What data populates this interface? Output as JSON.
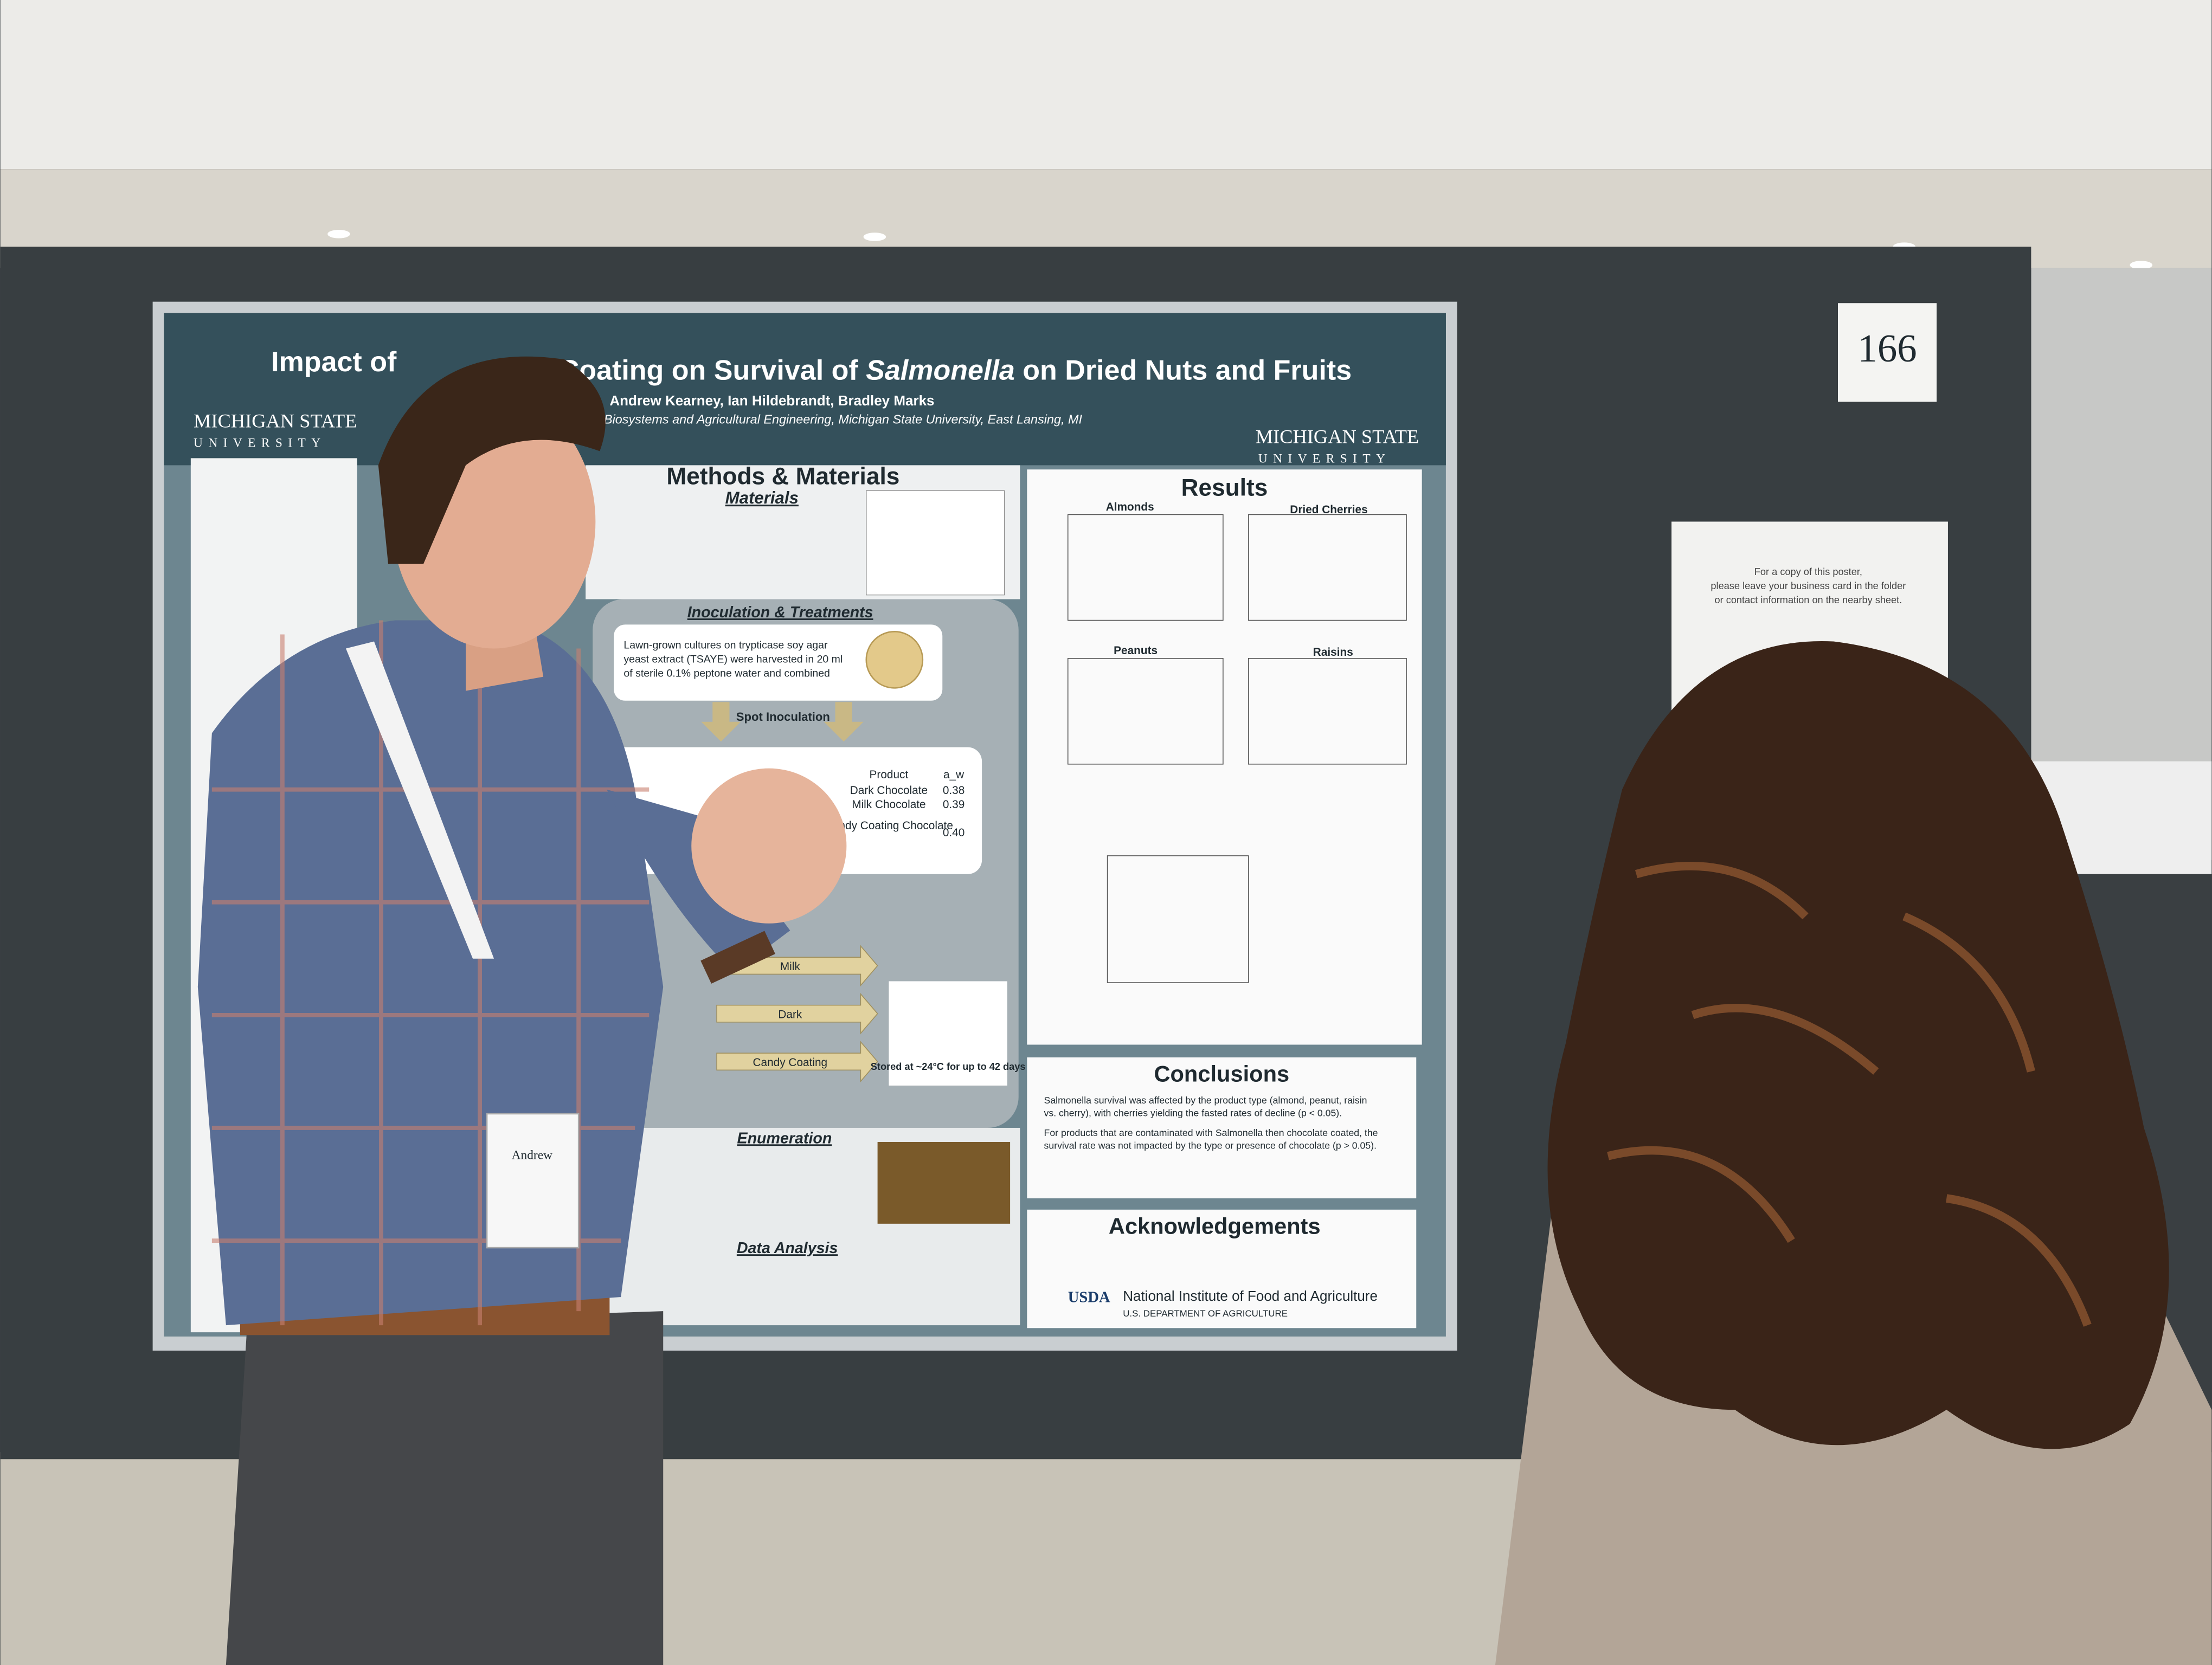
{
  "poster": {
    "title_start": "Impact of",
    "title_mid": "Coating on Survival of",
    "title_italic": "Salmonella",
    "title_end": "on Dried Nuts and Fruits",
    "authors": "Andrew Kearney, Ian Hildebrandt, Bradley Marks",
    "affiliation": "Biosystems and Agricultural Engineering, Michigan State University, East Lansing, MI",
    "logo_top": "MICHIGAN STATE",
    "logo_bottom": "UNIVERSITY",
    "sections": {
      "methods": "Methods & Materials",
      "materials": "Materials",
      "inoculation": "Inoculation & Treatments",
      "spot": "Spot Inoculation",
      "enumeration": "Enumeration",
      "analysis": "Data Analysis",
      "results": "Results",
      "conclusions": "Conclusions",
      "acknowledgements": "Acknowledgements"
    },
    "lawn": [
      "Lawn-grown cultures on trypticase soy agar",
      "yeast extract (TSAYE) were harvested in 20 ml",
      "of sterile 0.1% peptone water and combined"
    ],
    "table": {
      "header": [
        "Product",
        "a_w"
      ],
      "rows": [
        [
          "Dark Chocolate",
          "0.38"
        ],
        [
          "Milk Chocolate",
          "0.39"
        ],
        [
          "Candy Coating Chocolate",
          "0.40"
        ]
      ]
    },
    "coatings": [
      "Milk",
      "Dark",
      "Candy Coating"
    ],
    "storage": "Stored at ~24°C for up to 42 days",
    "charts": [
      "Almonds",
      "Dried Cherries",
      "Peanuts",
      "Raisins"
    ],
    "conclusions": [
      "Salmonella survival was affected by the product type (almond, peanut, raisin",
      "vs. cherry), with cherries yielding the fasted rates of decline (p < 0.05).",
      "For products that are contaminated with Salmonella then chocolate coated, the",
      "survival rate was not impacted by the type or presence of chocolate (p > 0.05)."
    ],
    "usda": "USDA",
    "nifa": "National Institute of Food and Agriculture",
    "dept": "U.S. DEPARTMENT OF AGRICULTURE"
  },
  "board_number": "166",
  "notice": [
    "For a copy of this poster,",
    "please leave your business card in the folder",
    "or contact information on the nearby sheet."
  ],
  "badge": "Andrew"
}
